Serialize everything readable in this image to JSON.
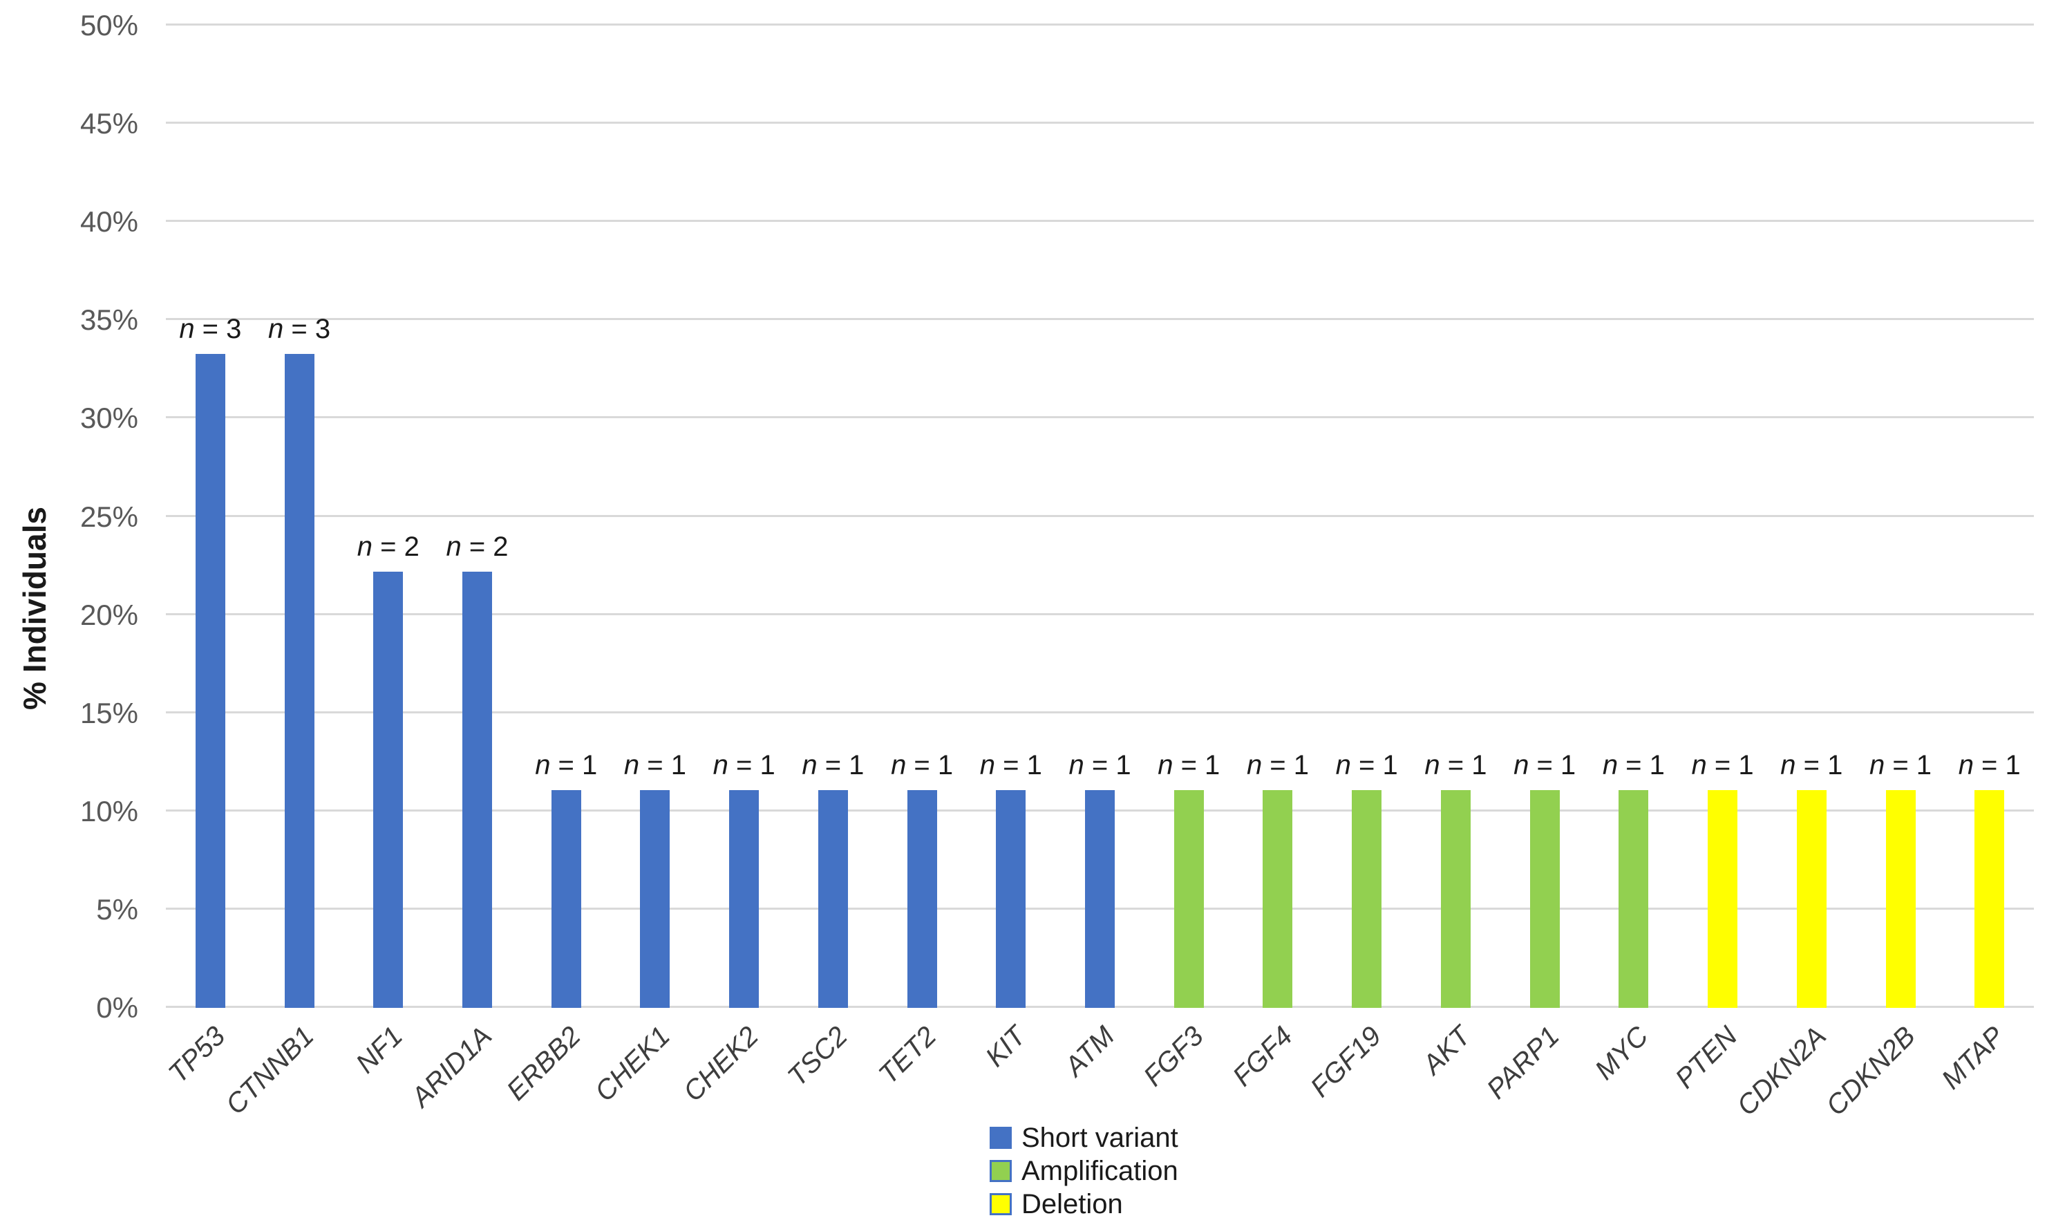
{
  "chart_data": {
    "type": "bar",
    "title": "",
    "xlabel": "",
    "ylabel": "% Individuals",
    "ylim": [
      0,
      50
    ],
    "ytick_step": 5,
    "ytick_labels": [
      "0%",
      "5%",
      "10%",
      "15%",
      "20%",
      "25%",
      "30%",
      "35%",
      "40%",
      "45%",
      "50%"
    ],
    "grid": true,
    "legend_position": "bottom-center",
    "series": [
      {
        "name": "Short variant",
        "color": "#4472C4"
      },
      {
        "name": "Amplification",
        "color": "#92D050"
      },
      {
        "name": "Deletion",
        "color": "#FFFF00"
      }
    ],
    "categories": [
      "TP53",
      "CTNNB1",
      "NF1",
      "ARID1A",
      "ERBB2",
      "CHEK1",
      "CHEK2",
      "TSC2",
      "TET2",
      "KIT",
      "ATM",
      "FGF3",
      "FGF4",
      "FGF19",
      "AKT",
      "PARP1",
      "MYC",
      "PTEN",
      "CDKN2A",
      "CDKN2B",
      "MTAP"
    ],
    "bars": [
      {
        "gene": "TP53",
        "value": 33.3,
        "n": 3,
        "label_italic": "n",
        "label_rest": " = 3",
        "series": "Short variant"
      },
      {
        "gene": "CTNNB1",
        "value": 33.3,
        "n": 3,
        "label_italic": "n",
        "label_rest": " = 3",
        "series": "Short variant"
      },
      {
        "gene": "NF1",
        "value": 22.2,
        "n": 2,
        "label_italic": "n",
        "label_rest": " = 2",
        "series": "Short variant"
      },
      {
        "gene": "ARID1A",
        "value": 22.2,
        "n": 2,
        "label_italic": "n",
        "label_rest": " = 2",
        "series": "Short variant"
      },
      {
        "gene": "ERBB2",
        "value": 11.1,
        "n": 1,
        "label_italic": "n",
        "label_rest": " = 1",
        "series": "Short variant"
      },
      {
        "gene": "CHEK1",
        "value": 11.1,
        "n": 1,
        "label_italic": "n",
        "label_rest": " = 1",
        "series": "Short variant"
      },
      {
        "gene": "CHEK2",
        "value": 11.1,
        "n": 1,
        "label_italic": "n",
        "label_rest": " = 1",
        "series": "Short variant"
      },
      {
        "gene": "TSC2",
        "value": 11.1,
        "n": 1,
        "label_italic": "n",
        "label_rest": " = 1",
        "series": "Short variant"
      },
      {
        "gene": "TET2",
        "value": 11.1,
        "n": 1,
        "label_italic": "n",
        "label_rest": " = 1",
        "series": "Short variant"
      },
      {
        "gene": "KIT",
        "value": 11.1,
        "n": 1,
        "label_italic": "n",
        "label_rest": " = 1",
        "series": "Short variant"
      },
      {
        "gene": "ATM",
        "value": 11.1,
        "n": 1,
        "label_italic": "n",
        "label_rest": " = 1",
        "series": "Short variant"
      },
      {
        "gene": "FGF3",
        "value": 11.1,
        "n": 1,
        "label_italic": "n",
        "label_rest": " = 1",
        "series": "Amplification"
      },
      {
        "gene": "FGF4",
        "value": 11.1,
        "n": 1,
        "label_italic": "n",
        "label_rest": " = 1",
        "series": "Amplification"
      },
      {
        "gene": "FGF19",
        "value": 11.1,
        "n": 1,
        "label_italic": "n",
        "label_rest": " = 1",
        "series": "Amplification"
      },
      {
        "gene": "AKT",
        "value": 11.1,
        "n": 1,
        "label_italic": "n",
        "label_rest": " = 1",
        "series": "Amplification"
      },
      {
        "gene": "PARP1",
        "value": 11.1,
        "n": 1,
        "label_italic": "n",
        "label_rest": " = 1",
        "series": "Amplification"
      },
      {
        "gene": "MYC",
        "value": 11.1,
        "n": 1,
        "label_italic": "n",
        "label_rest": " = 1",
        "series": "Amplification"
      },
      {
        "gene": "PTEN",
        "value": 11.1,
        "n": 1,
        "label_italic": "n",
        "label_rest": " = 1",
        "series": "Deletion"
      },
      {
        "gene": "CDKN2A",
        "value": 11.1,
        "n": 1,
        "label_italic": "n",
        "label_rest": " = 1",
        "series": "Deletion"
      },
      {
        "gene": "CDKN2B",
        "value": 11.1,
        "n": 1,
        "label_italic": "n",
        "label_rest": " = 1",
        "series": "Deletion"
      },
      {
        "gene": "MTAP",
        "value": 11.1,
        "n": 1,
        "label_italic": "n",
        "label_rest": " = 1",
        "series": "Deletion"
      }
    ]
  },
  "colors": {
    "background": "#ffffff",
    "gridline": "#d9d9d9",
    "tick_label": "#595959",
    "value_label": "#1a1a1a",
    "category_label": "#3d3d3d",
    "legend_border": "#4472C4",
    "short_variant": "#4472C4",
    "amplification": "#92D050",
    "deletion": "#FFFF00"
  }
}
